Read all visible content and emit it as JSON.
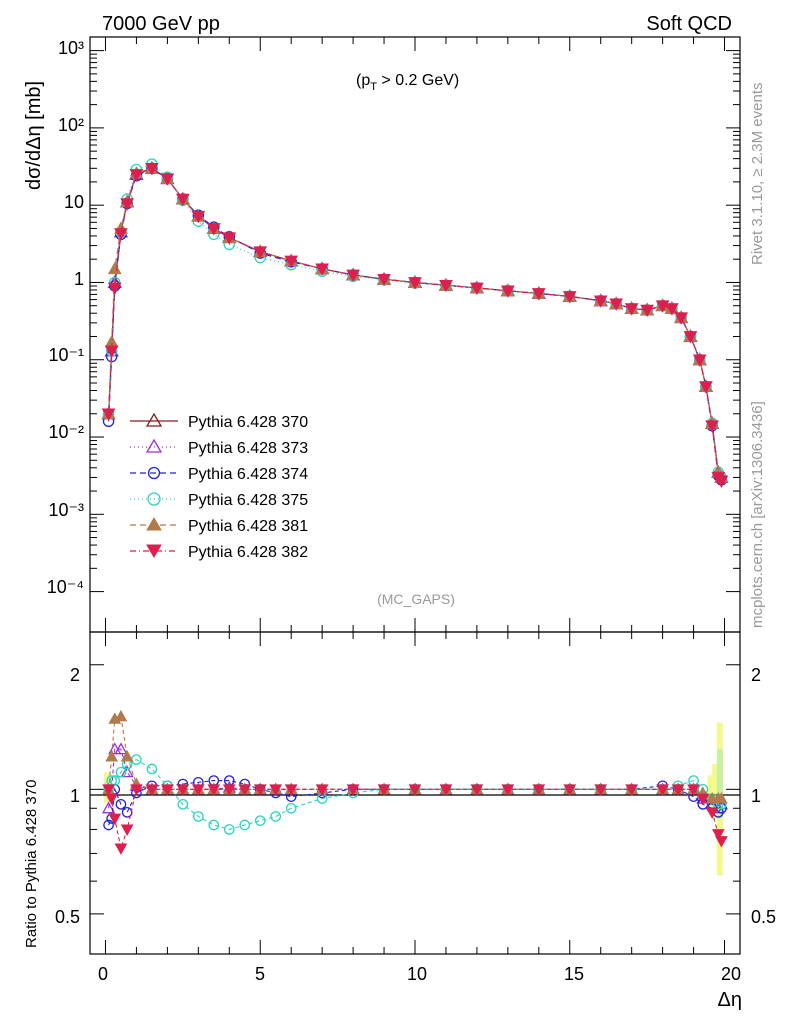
{
  "header": {
    "left": "7000 GeV pp",
    "right": "Soft QCD"
  },
  "annotations": {
    "cut": "(p",
    "cut_sub": "T",
    "cut_rest": " > 0.2 GeV)",
    "analysis": "(MC_GAPS)",
    "side_rivet": "Rivet 3.1.10, ≥ 2.3M events",
    "side_site": "mcplots.cern.ch [arXiv:1306.3436]"
  },
  "axes": {
    "top_ylabel": "dσ/dΔη [mb]",
    "bottom_ylabel": "Ratio to Pythia 6.428 370",
    "xlabel": "Δη",
    "x_ticks": [
      "0",
      "5",
      "10",
      "15",
      "20"
    ],
    "top_y_ticks": [
      "10⁻⁴",
      "10⁻³",
      "10⁻²",
      "10⁻¹",
      "1",
      "10",
      "10²",
      "10³"
    ],
    "ratio_ticks_left": [
      "0.5",
      "1",
      "2"
    ],
    "ratio_ticks_right": [
      "0.5",
      "1",
      "2"
    ]
  },
  "chart_data": [
    {
      "type": "line",
      "log_y": true,
      "xlim": [
        -0.5,
        20.5
      ],
      "ylim": [
        3e-05,
        1500
      ],
      "xlabel": "Δη",
      "ylabel": "dσ/dΔη [mb]",
      "legend_position": "lower-left",
      "x": [
        0.1,
        0.2,
        0.3,
        0.5,
        0.7,
        1.0,
        1.5,
        2.0,
        2.5,
        3.0,
        3.5,
        4.0,
        5.0,
        6.0,
        7.0,
        8.0,
        9.0,
        10.0,
        11.0,
        12.0,
        13.0,
        14.0,
        15.0,
        16.0,
        16.5,
        17.0,
        17.5,
        18.0,
        18.3,
        18.6,
        18.9,
        19.2,
        19.4,
        19.6,
        19.8,
        19.9
      ],
      "series": [
        {
          "name": "Pythia 6.428 370",
          "color": "#8b1a1a",
          "marker": "triangle-open",
          "dash": "",
          "values": [
            0.02,
            0.13,
            1.0,
            4.5,
            11,
            25,
            30,
            22,
            12,
            7.2,
            5.0,
            3.8,
            2.5,
            1.9,
            1.5,
            1.25,
            1.1,
            1.0,
            0.92,
            0.85,
            0.78,
            0.72,
            0.66,
            0.58,
            0.53,
            0.46,
            0.44,
            0.5,
            0.46,
            0.35,
            0.2,
            0.1,
            0.045,
            0.015,
            0.0035,
            0.003
          ]
        },
        {
          "name": "Pythia 6.428 373",
          "color": "#9b30d9",
          "marker": "triangle-open",
          "dash": "1,3",
          "values": [
            0.02,
            0.13,
            1.0,
            4.5,
            11,
            25,
            30,
            22,
            12,
            7.2,
            5.0,
            3.8,
            2.5,
            1.9,
            1.5,
            1.25,
            1.1,
            1.0,
            0.92,
            0.85,
            0.78,
            0.72,
            0.66,
            0.58,
            0.53,
            0.46,
            0.44,
            0.5,
            0.46,
            0.35,
            0.2,
            0.1,
            0.045,
            0.015,
            0.0035,
            0.003
          ]
        },
        {
          "name": "Pythia 6.428 374",
          "color": "#2222dd",
          "marker": "circle-open",
          "dash": "6,4",
          "values": [
            0.016,
            0.11,
            0.9,
            4.2,
            10.5,
            24,
            30,
            22,
            12,
            7.4,
            5.2,
            3.9,
            2.4,
            1.85,
            1.5,
            1.25,
            1.1,
            1.0,
            0.92,
            0.85,
            0.78,
            0.72,
            0.66,
            0.58,
            0.53,
            0.46,
            0.44,
            0.5,
            0.46,
            0.35,
            0.2,
            0.1,
            0.045,
            0.014,
            0.0032,
            0.0028
          ]
        },
        {
          "name": "Pythia 6.428 375",
          "color": "#2ad4bf",
          "marker": "circle-open",
          "dash": "1,3",
          "values": [
            0.02,
            0.13,
            1.0,
            4.5,
            12,
            29,
            34,
            23,
            11.5,
            6.2,
            4.2,
            3.1,
            2.1,
            1.7,
            1.4,
            1.2,
            1.08,
            0.98,
            0.92,
            0.85,
            0.78,
            0.72,
            0.66,
            0.58,
            0.53,
            0.46,
            0.44,
            0.5,
            0.46,
            0.35,
            0.2,
            0.1,
            0.045,
            0.015,
            0.0035,
            0.003
          ]
        },
        {
          "name": "Pythia 6.428 381",
          "color": "#b07a4a",
          "marker": "triangle-filled",
          "dash": "6,4",
          "values": [
            0.02,
            0.17,
            1.5,
            5.0,
            11,
            26,
            30,
            22,
            12,
            7.2,
            5.0,
            3.8,
            2.5,
            1.9,
            1.5,
            1.25,
            1.1,
            1.0,
            0.92,
            0.85,
            0.78,
            0.72,
            0.66,
            0.58,
            0.53,
            0.46,
            0.44,
            0.5,
            0.46,
            0.35,
            0.2,
            0.1,
            0.045,
            0.015,
            0.0035,
            0.003
          ]
        },
        {
          "name": "Pythia 6.428 382",
          "color": "#dd1f4e",
          "marker": "triangle-down-filled",
          "dash": "6,3,1,3",
          "values": [
            0.02,
            0.13,
            0.85,
            4.3,
            10.5,
            25,
            30,
            22,
            12,
            7.2,
            5.0,
            3.8,
            2.5,
            1.9,
            1.5,
            1.25,
            1.1,
            1.0,
            0.92,
            0.85,
            0.78,
            0.72,
            0.66,
            0.58,
            0.53,
            0.46,
            0.44,
            0.5,
            0.46,
            0.35,
            0.2,
            0.1,
            0.045,
            0.014,
            0.003,
            0.0027
          ]
        }
      ]
    },
    {
      "type": "line",
      "log_y": true,
      "xlim": [
        -0.5,
        20.5
      ],
      "ylim": [
        0.4,
        2.4
      ],
      "ylabel": "Ratio to Pythia 6.428 370",
      "xlabel": "Δη",
      "x": [
        0.1,
        0.2,
        0.3,
        0.5,
        0.7,
        1.0,
        1.5,
        2.0,
        2.5,
        3.0,
        3.5,
        4.0,
        4.5,
        5.0,
        5.5,
        6.0,
        7.0,
        8.0,
        9.0,
        10.0,
        11.0,
        12.0,
        13.0,
        14.0,
        15.0,
        16.0,
        17.0,
        18.0,
        18.5,
        19.0,
        19.3,
        19.6,
        19.8,
        19.9
      ],
      "series": [
        {
          "name": "Pythia 6.428 373",
          "color": "#9b30d9",
          "marker": "triangle-open",
          "values": [
            0.9,
            1.0,
            1.25,
            1.25,
            1.1,
            1.02,
            1.0,
            1.0,
            1.0,
            1.0,
            1.0,
            1.01,
            1.0,
            1.0,
            1.0,
            1.0,
            1.0,
            1.0,
            1.0,
            1.0,
            1.0,
            1.0,
            1.0,
            1.0,
            1.0,
            1.0,
            1.0,
            1.0,
            1.0,
            1.0,
            0.95,
            0.92,
            0.9,
            0.92
          ]
        },
        {
          "name": "Pythia 6.428 374",
          "color": "#2222dd",
          "marker": "circle-open",
          "values": [
            0.82,
            0.85,
            1.0,
            0.92,
            0.88,
            0.98,
            1.02,
            1.02,
            1.03,
            1.04,
            1.05,
            1.05,
            1.03,
            1.0,
            0.98,
            0.96,
            0.98,
            1.0,
            1.0,
            1.0,
            1.0,
            1.0,
            1.0,
            1.0,
            1.0,
            1.0,
            1.0,
            1.02,
            1.0,
            0.96,
            0.92,
            0.9,
            0.88,
            0.9
          ]
        },
        {
          "name": "Pythia 6.428 375",
          "color": "#2ad4bf",
          "marker": "circle-open",
          "values": [
            1.0,
            1.05,
            1.05,
            1.1,
            1.15,
            1.18,
            1.12,
            1.02,
            0.92,
            0.86,
            0.82,
            0.8,
            0.82,
            0.84,
            0.86,
            0.9,
            0.95,
            0.98,
            1.0,
            1.0,
            1.0,
            1.0,
            1.0,
            1.0,
            1.0,
            1.0,
            1.0,
            1.0,
            1.02,
            1.05,
            1.0,
            0.95,
            0.92,
            0.92
          ]
        },
        {
          "name": "Pythia 6.428 381",
          "color": "#b07a4a",
          "marker": "triangle-filled",
          "values": [
            1.0,
            1.2,
            1.48,
            1.5,
            1.2,
            1.03,
            1.0,
            1.0,
            1.0,
            1.0,
            1.0,
            1.0,
            1.0,
            1.0,
            1.0,
            1.0,
            1.0,
            1.0,
            1.0,
            1.0,
            1.0,
            1.0,
            1.0,
            1.0,
            1.0,
            1.0,
            1.0,
            1.0,
            1.0,
            1.0,
            0.98,
            0.95,
            0.95,
            0.95
          ]
        },
        {
          "name": "Pythia 6.428 382",
          "color": "#dd1f4e",
          "marker": "triangle-down-filled",
          "values": [
            1.0,
            0.95,
            0.85,
            0.72,
            0.8,
            1.0,
            1.0,
            1.0,
            1.0,
            1.0,
            1.0,
            1.0,
            1.0,
            1.0,
            1.0,
            1.0,
            1.0,
            1.0,
            1.0,
            1.0,
            1.0,
            1.0,
            1.0,
            1.0,
            1.0,
            1.0,
            1.0,
            1.0,
            1.0,
            1.0,
            0.95,
            0.88,
            0.78,
            0.75
          ]
        }
      ]
    }
  ]
}
